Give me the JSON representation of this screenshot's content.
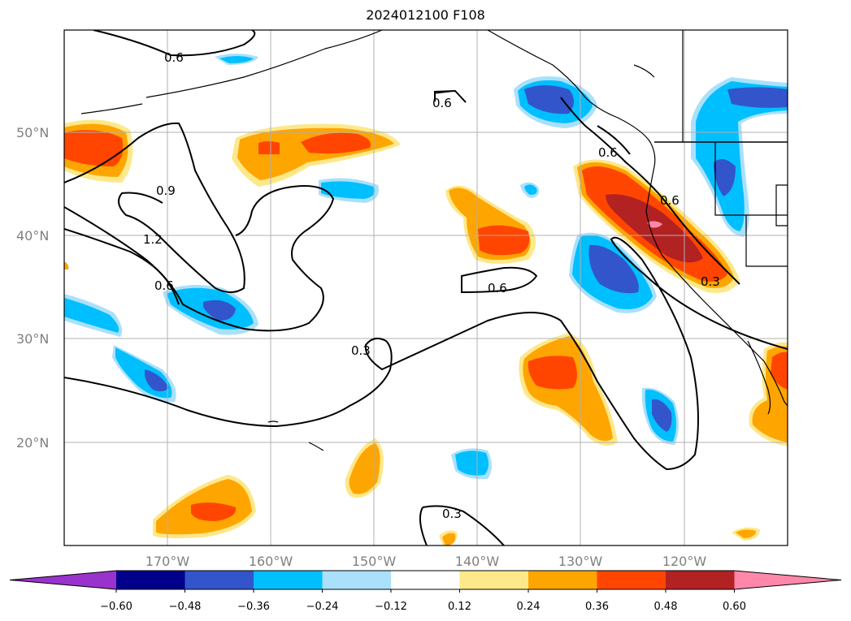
{
  "title": "2024012100 F108",
  "lat_labels": [
    "50°N",
    "40°N",
    "30°N",
    "20°N"
  ],
  "lon_labels": [
    "170°W",
    "160°W",
    "150°W",
    "140°W",
    "130°W",
    "120°W"
  ],
  "contour_labels": {
    "c1": "0.6",
    "c2": "0.6",
    "c3": "0.9",
    "c4": "1.2",
    "c5": "0.6",
    "c6": "0.6",
    "c7": "0.3",
    "c8": "0.6",
    "c9": "0.6",
    "c10": "0.3",
    "c11": "0.3"
  },
  "colorbar": {
    "ticks": [
      "−0.60",
      "−0.48",
      "−0.36",
      "−0.24",
      "−0.12",
      "0.12",
      "0.24",
      "0.36",
      "0.48",
      "0.60"
    ],
    "colors": [
      "#9933cc",
      "#00008b",
      "#3355cc",
      "#00bfff",
      "#aae0fa",
      "#ffffff",
      "#fde88a",
      "#ffa500",
      "#ff4500",
      "#b22222",
      "#ff88aa"
    ]
  },
  "colors": {
    "yellow": "#fde88a",
    "orange": "#ffa500",
    "red_orange": "#ff4500",
    "dark_red": "#b22222",
    "pink": "#ff88aa",
    "light_blue": "#aae0fa",
    "sky_blue": "#00bfff",
    "royal_blue": "#3355cc"
  }
}
